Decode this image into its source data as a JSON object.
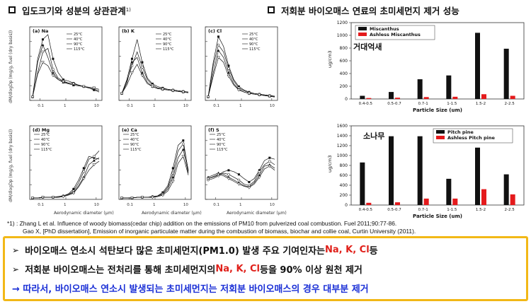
{
  "header": {
    "left_title": "입도크기와 성분의 상관관계",
    "left_sup": "1)",
    "right_title": "저회분 바이오매스 연료의 초미세먼지 제거 성능"
  },
  "left_figure": {
    "y_axis_top": "dM/dlogDp (mg/g, fuel (dry basis))",
    "y_axis_bottom": "dM/dlogDp (mg/g, fuel (dry basis))",
    "x_axis": "Aerodynamic diameter (μm)",
    "legend": [
      "25°C",
      "40°C",
      "90°C",
      "115°C"
    ],
    "panels": [
      {
        "label": "(a) Na"
      },
      {
        "label": "(b) K"
      },
      {
        "label": "(c) Cl"
      },
      {
        "label": "(d) Mg"
      },
      {
        "label": "(e) Ca"
      },
      {
        "label": "(f) S"
      }
    ]
  },
  "chart_data": [
    {
      "type": "bar",
      "title": "",
      "annotation": "거대억새",
      "categories": [
        "0.4-0.5",
        "0.5-0.7",
        "0.7-1",
        "1-1.5",
        "1.5-2",
        "2-2.5"
      ],
      "series": [
        {
          "name": "Miscanthus",
          "values": [
            50,
            110,
            310,
            370,
            1040,
            790
          ],
          "color": "#111111"
        },
        {
          "name": "Ashless Miscanthus",
          "values": [
            15,
            20,
            30,
            35,
            75,
            50
          ],
          "color": "#e41a1c"
        }
      ],
      "xlabel": "Particle Size (um)",
      "ylabel": "ug/cm3",
      "ylim": [
        0,
        1200
      ],
      "yticks": [
        0,
        200,
        400,
        600,
        800,
        1000,
        1200
      ],
      "legend_position": "top-left"
    },
    {
      "type": "bar",
      "title": "",
      "annotation": "소나무",
      "categories": [
        "0.4-0.5",
        "0.5-0.7",
        "0.7-1",
        "1-1.5",
        "1.5-2",
        "2-2.5"
      ],
      "series": [
        {
          "name": "Pitch pine",
          "values": [
            860,
            1390,
            1390,
            530,
            1160,
            620
          ],
          "color": "#111111"
        },
        {
          "name": "Ashless Pitch pine",
          "values": [
            45,
            55,
            130,
            130,
            320,
            215
          ],
          "color": "#e41a1c"
        }
      ],
      "xlabel": "Particle Size (um)",
      "ylabel": "ug/cm3",
      "ylim": [
        0,
        1600
      ],
      "yticks": [
        0,
        200,
        400,
        600,
        800,
        1000,
        1200,
        1400,
        1600
      ],
      "legend_position": "top-right"
    }
  ],
  "footnote": {
    "line1": "*1) : Zhang L et al. Influence of woody biomass(cedar chip) addition on the emissions of PM10 from pulverized coal combustion. Fuel 2011;90:77-86.",
    "line2": "Gao X, [PhD dissertation], Emission of inorganic particulate matter during the combustion of biomass, biochar and collie coal, Curtin University (2011)."
  },
  "summary": {
    "line1_prefix": "바이오매스 연소시 석탄보다 많은 초미세먼지(PM1.0) 발생 주요 기여인자는 ",
    "line1_highlight": "Na, K, Cl",
    "line1_suffix": " 등",
    "line2_prefix": "저회분 바이오매스는 전처리를 통해 초미세먼지의 ",
    "line2_highlight": "Na, K, Cl",
    "line2_suffix": " 등을 90% 이상 원천 제거",
    "line3": "→ 따라서, 바이오매스 연소시 발생되는 초미세먼지는 저회분 바이오매스의 경우 대부분 제거",
    "bullet": "➢"
  }
}
